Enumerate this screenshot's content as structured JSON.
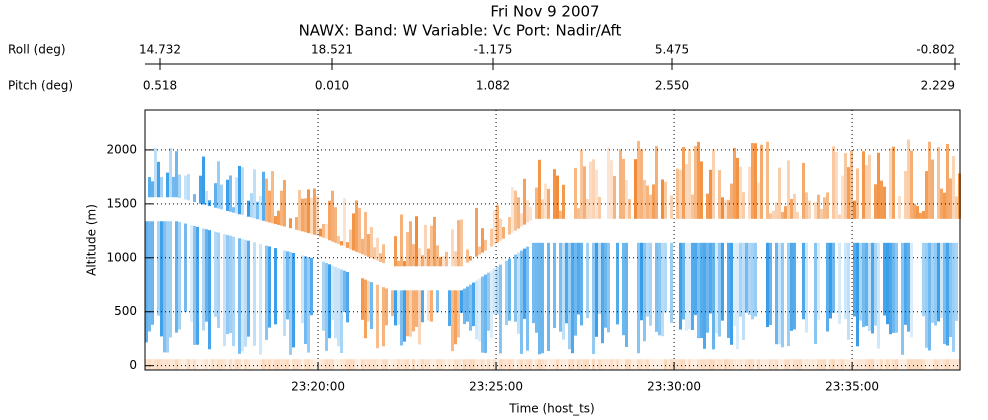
{
  "chart_data": {
    "type": "curtain",
    "title": "Fri Nov  9 2007",
    "subtitle": "NAWX: Band: W    Variable: Vc    Port: Nadir/Aft",
    "roll_label": "Roll (deg)",
    "roll_ticks": [
      "14.732",
      "18.521",
      "-1.175",
      "5.475",
      "-0.802"
    ],
    "pitch_label": "Pitch (deg)",
    "pitch_ticks": [
      "0.518",
      "0.010",
      "1.082",
      "2.550",
      "2.229"
    ],
    "ylabel": "Altitude (m)",
    "xlabel": "Time (host_ts)",
    "ylim": [
      -40,
      2370
    ],
    "yticks": [
      0,
      500,
      1000,
      1500,
      2000
    ],
    "xlim": [
      1395.14,
      1418.03
    ],
    "xticks": [
      {
        "value": 1400,
        "label": "23:20:00"
      },
      {
        "value": 1405,
        "label": "23:25:00"
      },
      {
        "value": 1410,
        "label": "23:30:00"
      },
      {
        "value": 1415,
        "label": "23:35:00"
      }
    ],
    "grid": true,
    "colors": [
      "#1e90e6",
      "#f07d1e"
    ]
  }
}
